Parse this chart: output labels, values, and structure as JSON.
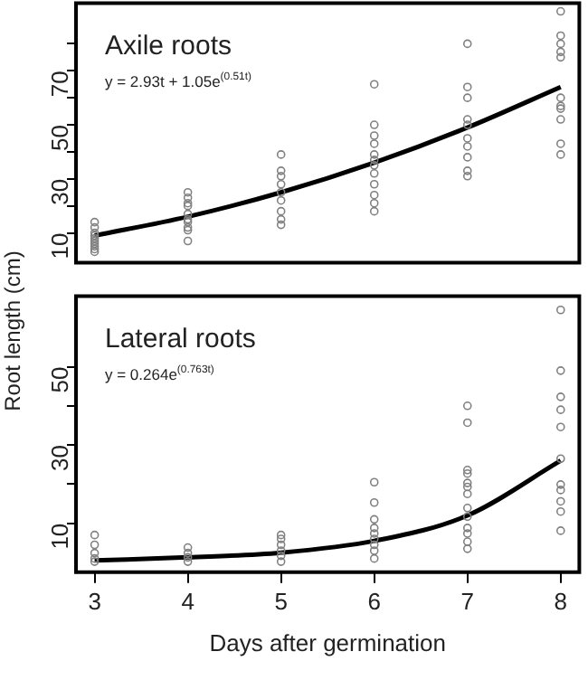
{
  "chart_data": [
    {
      "type": "scatter",
      "title": "Axile roots",
      "ylabel": "Root length (cm)",
      "annotations": [
        "y = 2.93t + 1.05e$^{(0.51t)}$"
      ],
      "xlim": [
        2.8,
        8.2
      ],
      "xticks": [
        3,
        4,
        5,
        6,
        7,
        8
      ],
      "ylim": [
        -1,
        95
      ],
      "yticks": [
        10,
        {
          "value": 20,
          "label": null
        },
        30,
        {
          "value": 40,
          "label": null
        },
        50,
        {
          "value": 60,
          "label": null
        },
        70,
        {
          "value": 80,
          "label": null
        }
      ],
      "tick_labels": "y",
      "grid": false,
      "marker": "circle",
      "series": [
        {
          "color": "#808080",
          "x": [
            3,
            3,
            3,
            3,
            3,
            3,
            3,
            3,
            3,
            3,
            4,
            4,
            4,
            4,
            4,
            4,
            4,
            4,
            4,
            4,
            5,
            5,
            5,
            5,
            5,
            5,
            5,
            5,
            5,
            6,
            6,
            6,
            6,
            6,
            6,
            6,
            6,
            6,
            6,
            6,
            6,
            7,
            7,
            7,
            7,
            7,
            7,
            7,
            7,
            7,
            7,
            8,
            8,
            8,
            8,
            8,
            8,
            8,
            8,
            8,
            8,
            8
          ],
          "values": [
            14,
            12,
            10,
            9,
            8,
            7,
            6,
            5,
            4,
            3,
            25,
            23,
            21,
            20,
            17,
            15,
            14,
            12,
            11,
            7,
            39,
            33,
            31,
            28,
            25,
            22,
            18,
            15,
            13,
            65,
            50,
            46,
            43,
            39,
            37,
            35,
            32,
            28,
            24,
            21,
            18,
            80,
            64,
            60,
            52,
            50,
            45,
            42,
            38,
            33,
            31,
            92,
            83,
            80,
            77,
            75,
            60,
            57,
            56,
            52,
            43,
            39
          ]
        },
        {
          "type": "line",
          "color": "#000000",
          "marker": "none",
          "x": [
            3,
            4,
            5,
            6,
            7,
            8
          ],
          "values": [
            9,
            16,
            25,
            36,
            49,
            64
          ]
        }
      ]
    },
    {
      "type": "scatter",
      "title": "Lateral roots",
      "xlabel": "Days after germination",
      "annotations": [
        "y = 0.264e$^{(0.763t)}$"
      ],
      "xlim": [
        2.8,
        8.2
      ],
      "xticks": [
        3,
        4,
        5,
        6,
        7,
        8
      ],
      "ylim": [
        -2.5,
        68
      ],
      "yticks": [
        10,
        {
          "value": 20,
          "label": null
        },
        30,
        {
          "value": 40,
          "label": null
        },
        50
      ],
      "grid": false,
      "marker": "circle",
      "series": [
        {
          "color": "#808080",
          "x": [
            3,
            3,
            3,
            3,
            3,
            4,
            4,
            4,
            4,
            5,
            5,
            5,
            5,
            5,
            5,
            6,
            6,
            6,
            6,
            6,
            6,
            6,
            6,
            6,
            7,
            7,
            7,
            7,
            7,
            7,
            7,
            7,
            7,
            7,
            7,
            7,
            7,
            8,
            8,
            8,
            8,
            8,
            8,
            8,
            8,
            8,
            8,
            8
          ],
          "values": [
            7,
            4.5,
            2.4,
            1,
            0.2,
            3.8,
            2.4,
            1.3,
            0.2,
            7,
            6,
            4.5,
            3,
            1.7,
            0.2,
            20.5,
            15.3,
            11,
            8.8,
            7.4,
            6,
            4.5,
            3,
            1,
            40,
            35.7,
            23.6,
            22.7,
            20.3,
            19.3,
            17.5,
            13.9,
            11.7,
            8.8,
            7.4,
            5.3,
            3.5,
            64.5,
            49,
            42.3,
            39,
            34.6,
            26.5,
            19.9,
            18.5,
            15.6,
            13,
            8.1
          ]
        },
        {
          "type": "line",
          "color": "#000000",
          "marker": "none",
          "x": [
            3,
            4,
            5,
            6,
            7,
            8
          ],
          "values": [
            0.5,
            1.3,
            2.5,
            5.5,
            12,
            26
          ]
        }
      ]
    }
  ]
}
